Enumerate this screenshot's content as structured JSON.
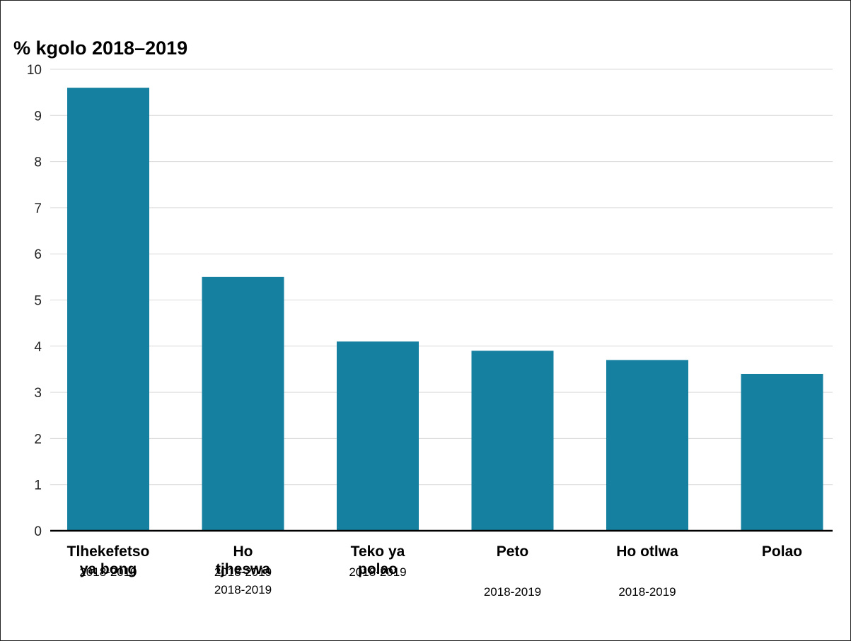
{
  "chart_data": {
    "type": "bar",
    "title": "% kgolo 2018–2019",
    "xlabel": "",
    "ylabel": "",
    "ylim": [
      0,
      10
    ],
    "yticks": [
      0,
      1,
      2,
      3,
      4,
      5,
      6,
      7,
      8,
      9,
      10
    ],
    "grid": true,
    "bar_color": "#1680a0",
    "categories": [
      {
        "lines": [
          "Tlhekefetso",
          "ya bong"
        ],
        "sub": [
          "2018-2019"
        ]
      },
      {
        "lines": [
          "Ho",
          "tjheswa"
        ],
        "sub": [
          "2018-2019",
          "2018-2019"
        ]
      },
      {
        "lines": [
          "Teko ya",
          "polao"
        ],
        "sub": [
          "2018-2019"
        ]
      },
      {
        "lines": [
          "Peto"
        ],
        "sub": [
          "2018-2019"
        ]
      },
      {
        "lines": [
          "Ho otlwa"
        ],
        "sub": [
          "2018-2019"
        ]
      },
      {
        "lines": [
          "Polao"
        ],
        "sub": []
      }
    ],
    "values": [
      9.6,
      5.5,
      4.1,
      3.9,
      3.7,
      3.4
    ]
  }
}
